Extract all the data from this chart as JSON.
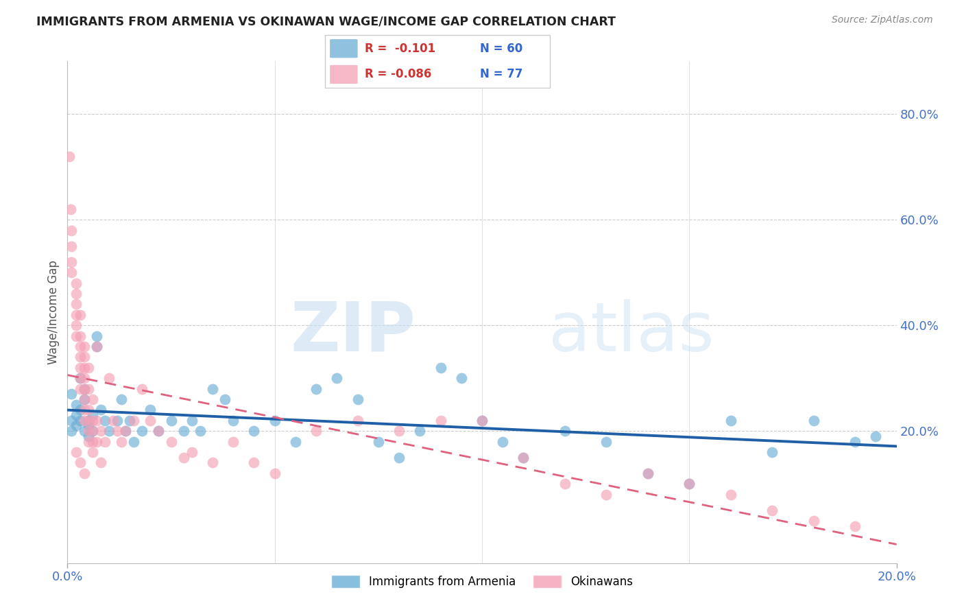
{
  "title": "IMMIGRANTS FROM ARMENIA VS OKINAWAN WAGE/INCOME GAP CORRELATION CHART",
  "source": "Source: ZipAtlas.com",
  "ylabel": "Wage/Income Gap",
  "right_yticks": [
    "20.0%",
    "40.0%",
    "60.0%",
    "80.0%"
  ],
  "right_ytick_vals": [
    0.2,
    0.4,
    0.6,
    0.8
  ],
  "legend_blue_r": "R =  -0.101",
  "legend_blue_n": "N = 60",
  "legend_pink_r": "R = -0.086",
  "legend_pink_n": "N = 77",
  "legend_label_blue": "Immigrants from Armenia",
  "legend_label_pink": "Okinawans",
  "blue_color": "#6baed6",
  "pink_color": "#f4a0b5",
  "blue_line_color": "#1f5fa6",
  "pink_line_color": "#e0607e",
  "watermark_zip": "ZIP",
  "watermark_atlas": "atlas",
  "xlim": [
    0.0,
    0.2
  ],
  "ylim": [
    -0.05,
    0.9
  ],
  "blue_points": [
    [
      0.001,
      0.22
    ],
    [
      0.001,
      0.27
    ],
    [
      0.001,
      0.2
    ],
    [
      0.002,
      0.25
    ],
    [
      0.002,
      0.21
    ],
    [
      0.002,
      0.23
    ],
    [
      0.003,
      0.3
    ],
    [
      0.003,
      0.24
    ],
    [
      0.003,
      0.22
    ],
    [
      0.004,
      0.26
    ],
    [
      0.004,
      0.2
    ],
    [
      0.004,
      0.28
    ],
    [
      0.005,
      0.22
    ],
    [
      0.005,
      0.19
    ],
    [
      0.005,
      0.21
    ],
    [
      0.006,
      0.23
    ],
    [
      0.006,
      0.2
    ],
    [
      0.007,
      0.38
    ],
    [
      0.007,
      0.36
    ],
    [
      0.008,
      0.24
    ],
    [
      0.009,
      0.22
    ],
    [
      0.01,
      0.2
    ],
    [
      0.012,
      0.22
    ],
    [
      0.013,
      0.26
    ],
    [
      0.014,
      0.2
    ],
    [
      0.015,
      0.22
    ],
    [
      0.016,
      0.18
    ],
    [
      0.018,
      0.2
    ],
    [
      0.02,
      0.24
    ],
    [
      0.022,
      0.2
    ],
    [
      0.025,
      0.22
    ],
    [
      0.028,
      0.2
    ],
    [
      0.03,
      0.22
    ],
    [
      0.032,
      0.2
    ],
    [
      0.035,
      0.28
    ],
    [
      0.038,
      0.26
    ],
    [
      0.04,
      0.22
    ],
    [
      0.045,
      0.2
    ],
    [
      0.05,
      0.22
    ],
    [
      0.055,
      0.18
    ],
    [
      0.06,
      0.28
    ],
    [
      0.065,
      0.3
    ],
    [
      0.07,
      0.26
    ],
    [
      0.075,
      0.18
    ],
    [
      0.08,
      0.15
    ],
    [
      0.085,
      0.2
    ],
    [
      0.09,
      0.32
    ],
    [
      0.095,
      0.3
    ],
    [
      0.1,
      0.22
    ],
    [
      0.105,
      0.18
    ],
    [
      0.11,
      0.15
    ],
    [
      0.12,
      0.2
    ],
    [
      0.13,
      0.18
    ],
    [
      0.14,
      0.12
    ],
    [
      0.15,
      0.1
    ],
    [
      0.16,
      0.22
    ],
    [
      0.17,
      0.16
    ],
    [
      0.18,
      0.22
    ],
    [
      0.19,
      0.18
    ],
    [
      0.195,
      0.19
    ]
  ],
  "pink_points": [
    [
      0.0005,
      0.72
    ],
    [
      0.0008,
      0.62
    ],
    [
      0.001,
      0.58
    ],
    [
      0.001,
      0.55
    ],
    [
      0.001,
      0.52
    ],
    [
      0.001,
      0.5
    ],
    [
      0.002,
      0.48
    ],
    [
      0.002,
      0.46
    ],
    [
      0.002,
      0.44
    ],
    [
      0.002,
      0.42
    ],
    [
      0.002,
      0.4
    ],
    [
      0.002,
      0.38
    ],
    [
      0.003,
      0.42
    ],
    [
      0.003,
      0.38
    ],
    [
      0.003,
      0.36
    ],
    [
      0.003,
      0.34
    ],
    [
      0.003,
      0.32
    ],
    [
      0.003,
      0.3
    ],
    [
      0.003,
      0.28
    ],
    [
      0.004,
      0.36
    ],
    [
      0.004,
      0.34
    ],
    [
      0.004,
      0.32
    ],
    [
      0.004,
      0.3
    ],
    [
      0.004,
      0.28
    ],
    [
      0.004,
      0.26
    ],
    [
      0.004,
      0.24
    ],
    [
      0.004,
      0.22
    ],
    [
      0.005,
      0.32
    ],
    [
      0.005,
      0.28
    ],
    [
      0.005,
      0.24
    ],
    [
      0.005,
      0.22
    ],
    [
      0.005,
      0.2
    ],
    [
      0.005,
      0.18
    ],
    [
      0.006,
      0.26
    ],
    [
      0.006,
      0.22
    ],
    [
      0.006,
      0.2
    ],
    [
      0.006,
      0.18
    ],
    [
      0.007,
      0.36
    ],
    [
      0.007,
      0.22
    ],
    [
      0.007,
      0.18
    ],
    [
      0.008,
      0.2
    ],
    [
      0.009,
      0.18
    ],
    [
      0.01,
      0.3
    ],
    [
      0.011,
      0.22
    ],
    [
      0.012,
      0.2
    ],
    [
      0.013,
      0.18
    ],
    [
      0.014,
      0.2
    ],
    [
      0.016,
      0.22
    ],
    [
      0.018,
      0.28
    ],
    [
      0.02,
      0.22
    ],
    [
      0.022,
      0.2
    ],
    [
      0.025,
      0.18
    ],
    [
      0.028,
      0.15
    ],
    [
      0.03,
      0.16
    ],
    [
      0.035,
      0.14
    ],
    [
      0.04,
      0.18
    ],
    [
      0.045,
      0.14
    ],
    [
      0.05,
      0.12
    ],
    [
      0.06,
      0.2
    ],
    [
      0.07,
      0.22
    ],
    [
      0.08,
      0.2
    ],
    [
      0.09,
      0.22
    ],
    [
      0.1,
      0.22
    ],
    [
      0.11,
      0.15
    ],
    [
      0.12,
      0.1
    ],
    [
      0.13,
      0.08
    ],
    [
      0.14,
      0.12
    ],
    [
      0.15,
      0.1
    ],
    [
      0.16,
      0.08
    ],
    [
      0.17,
      0.05
    ],
    [
      0.18,
      0.03
    ],
    [
      0.19,
      0.02
    ],
    [
      0.002,
      0.16
    ],
    [
      0.003,
      0.14
    ],
    [
      0.004,
      0.12
    ],
    [
      0.006,
      0.16
    ],
    [
      0.008,
      0.14
    ]
  ]
}
